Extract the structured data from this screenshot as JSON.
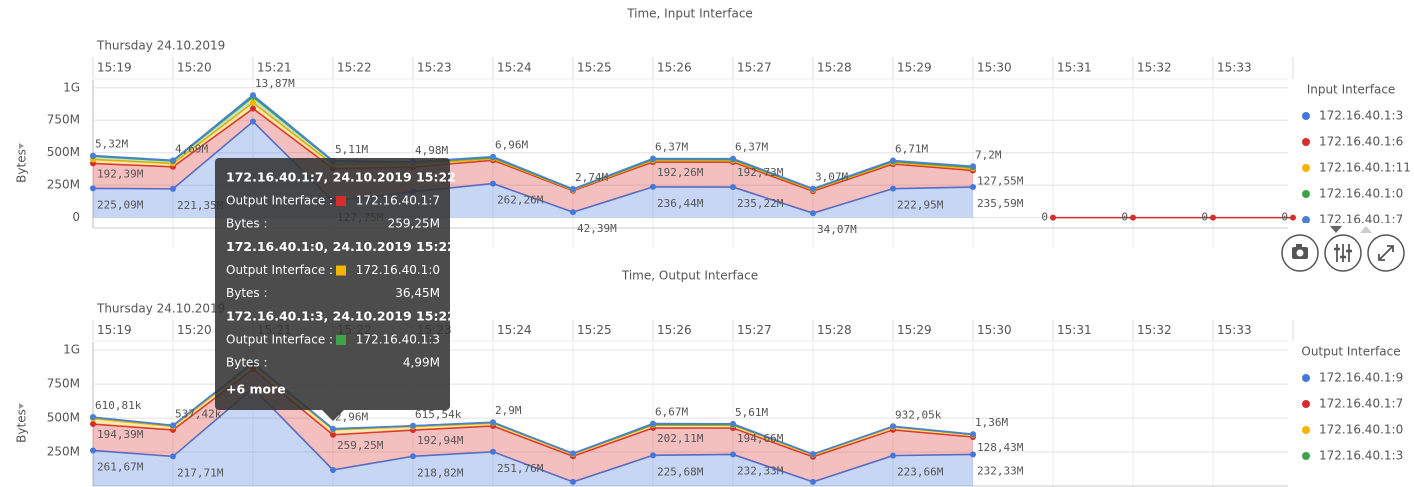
{
  "chart_data": [
    {
      "type": "area",
      "title": "Time, Input Interface",
      "x_header": "Thursday 24.10.2019",
      "ylabel": "Bytes",
      "legend_title": "Input Interface",
      "categories": [
        "15:19",
        "15:20",
        "15:21",
        "15:22",
        "15:23",
        "15:24",
        "15:25",
        "15:26",
        "15:27",
        "15:28",
        "15:29",
        "15:30",
        "15:31",
        "15:32",
        "15:33",
        null
      ],
      "ylim": [
        -80000000,
        1060000000
      ],
      "yticks": [
        {
          "value": 1000000000,
          "label": "1G"
        },
        {
          "value": 750000000,
          "label": "750M"
        },
        {
          "value": 500000000,
          "label": "500M"
        },
        {
          "value": 250000000,
          "label": "250M"
        },
        0
      ],
      "grid": true,
      "stacked": true,
      "series": [
        {
          "name": "172.16.40.1:3",
          "color": "#4477dd",
          "values": [
            225090000,
            221350000,
            740000000,
            127750000,
            200000000,
            262260000,
            42390000,
            236440000,
            235220000,
            34070000,
            222950000,
            235590000,
            null,
            null,
            null,
            null
          ],
          "value_labels": [
            "225,09M",
            "221,35M",
            null,
            "127,75M",
            null,
            "262,26M",
            "42,39M",
            "236,44M",
            "235,22M",
            "34,07M",
            "222,95M",
            "235,59M",
            null,
            null,
            null,
            null
          ]
        },
        {
          "name": "172.16.40.1:6",
          "color": "#d62c2c",
          "values": [
            192390000,
            170000000,
            100000000,
            250000000,
            190000000,
            180000000,
            165000000,
            192260000,
            192730000,
            170000000,
            190000000,
            127550000,
            null,
            null,
            null,
            null
          ],
          "value_labels": [
            "192,39M",
            null,
            null,
            null,
            null,
            null,
            null,
            "192,26M",
            "192,73M",
            null,
            null,
            "127,55M",
            null,
            null,
            null,
            null
          ]
        },
        {
          "name": "172.16.40.1:11",
          "color": "#f5b400",
          "values": [
            30000000,
            25000000,
            45000000,
            30000000,
            20000000,
            12000000,
            6000000,
            12000000,
            12000000,
            10000000,
            12000000,
            15000000,
            null,
            null,
            null,
            null
          ]
        },
        {
          "name": "172.16.40.1:0",
          "color": "#3ea34a",
          "values": [
            25000000,
            20000000,
            45000000,
            25000000,
            15000000,
            8000000,
            4000000,
            8000000,
            8000000,
            6000000,
            8000000,
            10000000,
            null,
            null,
            null,
            null
          ]
        },
        {
          "name": "172.16.40.1:7",
          "color": "#4a7fd9",
          "values": [
            5320000,
            4690000,
            13870000,
            5110000,
            4980000,
            6960000,
            2740000,
            6370000,
            6370000,
            3070000,
            6710000,
            7200000,
            null,
            null,
            null,
            null
          ],
          "value_labels": [
            "5,32M",
            "4,69M",
            "13,87M",
            "5,11M",
            "4,98M",
            "6,96M",
            "2,74M",
            "6,37M",
            "6,37M",
            "3,07M",
            "6,71M",
            "7,2M",
            null,
            null,
            null,
            null
          ]
        },
        {
          "color": "#d62c2c",
          "data_labels": true,
          "values": [
            null,
            null,
            null,
            null,
            null,
            null,
            null,
            null,
            null,
            null,
            null,
            null,
            0,
            0,
            0,
            0
          ]
        }
      ]
    },
    {
      "type": "area",
      "title": "Time, Output Interface",
      "x_header": "Thursday 24.10.2019",
      "ylabel": "Bytes",
      "legend_title": "Output Interface",
      "categories": [
        "15:19",
        "15:20",
        "15:21",
        "15:22",
        "15:23",
        "15:24",
        "15:25",
        "15:26",
        "15:27",
        "15:28",
        "15:29",
        "15:30",
        "15:31",
        "15:32",
        "15:33",
        null
      ],
      "ylim": [
        0,
        1060000000
      ],
      "yticks": [
        {
          "value": 1000000000,
          "label": "1G"
        },
        {
          "value": 750000000,
          "label": "750M"
        },
        {
          "value": 500000000,
          "label": "500M"
        },
        {
          "value": 250000000,
          "label": "250M"
        }
      ],
      "grid": true,
      "stacked": true,
      "series": [
        {
          "name": "172.16.40.1:9",
          "color": "#4477dd",
          "values": [
            261670000,
            217710000,
            720000000,
            118000000,
            218820000,
            251760000,
            30000000,
            225680000,
            232330000,
            30000000,
            223660000,
            232330000,
            null,
            null,
            null,
            null
          ],
          "value_labels": [
            "261,67M",
            "217,71M",
            null,
            null,
            "218,82M",
            "251,76M",
            null,
            "225,68M",
            "232,33M",
            null,
            "223,66M",
            "232,33M",
            null,
            null,
            null,
            null
          ]
        },
        {
          "name": "172.16.40.1:7",
          "color": "#d62c2c",
          "values": [
            194390000,
            195000000,
            140000000,
            259250000,
            192940000,
            190000000,
            190000000,
            202110000,
            194660000,
            185000000,
            190000000,
            128430000,
            null,
            null,
            null,
            null
          ],
          "value_labels": [
            "194,39M",
            null,
            null,
            "259,25M",
            "192,94M",
            null,
            null,
            "202,11M",
            "194,66M",
            null,
            null,
            "128,43M",
            null,
            null,
            null,
            null
          ]
        },
        {
          "name": "172.16.40.1:0",
          "color": "#f5b400",
          "values": [
            40000000,
            25000000,
            35000000,
            36450000,
            25000000,
            20000000,
            15000000,
            20000000,
            20000000,
            15000000,
            20000000,
            15000000,
            null,
            null,
            null,
            null
          ]
        },
        {
          "name": "172.16.40.1:3",
          "color": "#3ea34a",
          "values": [
            10000000,
            8000000,
            10000000,
            4990000,
            6000000,
            5000000,
            4000000,
            5000000,
            5000000,
            4000000,
            5000000,
            4000000,
            null,
            null,
            null,
            null
          ]
        },
        {
          "color": "#4a7fd9",
          "values": [
            610810,
            537420,
            3100000,
            2960000,
            615540,
            2900000,
            1000000,
            6670000,
            5610000,
            1000000,
            932050,
            1360000,
            null,
            null,
            null,
            null
          ],
          "value_labels": [
            "610,81k",
            "537,42k",
            null,
            "2,96M",
            "615,54k",
            "2,9M",
            null,
            "6,67M",
            "5,61M",
            null,
            "932,05k",
            "1,36M",
            null,
            null,
            null,
            null
          ]
        }
      ]
    }
  ],
  "tooltip": {
    "items": [
      {
        "title": "172.16.40.1:7, 24.10.2019 15:22",
        "field": "Output Interface :",
        "name": "172.16.40.1:7",
        "color": "#d62c2c",
        "measure": "Bytes :",
        "value": "259,25M"
      },
      {
        "title": "172.16.40.1:0, 24.10.2019 15:22",
        "field": "Output Interface :",
        "name": "172.16.40.1:0",
        "color": "#f5b400",
        "measure": "Bytes :",
        "value": "36,45M"
      },
      {
        "title": "172.16.40.1:3, 24.10.2019 15:22",
        "field": "Output Interface :",
        "name": "172.16.40.1:3",
        "color": "#3ea34a",
        "measure": "Bytes :",
        "value": "4,99M"
      }
    ],
    "more": "+6 more"
  }
}
